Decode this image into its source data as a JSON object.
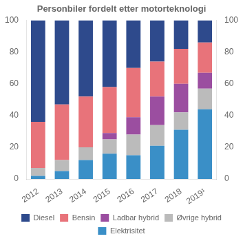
{
  "chart_data": {
    "type": "bar",
    "stacked": true,
    "title": "Personbiler fordelt etter motorteknologi",
    "categories": [
      "2012",
      "2013",
      "2014",
      "2015",
      "2016",
      "2017",
      "2018",
      "2019¹"
    ],
    "series": [
      {
        "name": "Elektrisitet",
        "color": "#3A8FC7",
        "values": [
          2,
          5,
          12,
          16,
          15,
          21,
          31,
          44
        ]
      },
      {
        "name": "Øvrige hybrid",
        "color": "#BBBBBB",
        "values": [
          5,
          7,
          8,
          9,
          13,
          13,
          11,
          13
        ]
      },
      {
        "name": "Ladbar hybrid",
        "color": "#9B4EA0",
        "values": [
          0,
          0,
          0,
          4,
          11,
          18,
          18,
          10
        ]
      },
      {
        "name": "Bensin",
        "color": "#E8737A",
        "values": [
          29,
          35,
          32,
          29,
          31,
          22,
          22,
          19
        ]
      },
      {
        "name": "Diesel",
        "color": "#2E4A8C",
        "values": [
          64,
          53,
          48,
          42,
          30,
          26,
          18,
          14
        ]
      }
    ],
    "ylim": [
      0,
      100
    ],
    "yticks": [
      0,
      20,
      40,
      60,
      80,
      100
    ],
    "y2lim": [
      0,
      100
    ],
    "y2ticks": [
      0,
      20,
      40,
      60,
      80,
      100
    ],
    "grid": false,
    "legend": "bottom"
  }
}
